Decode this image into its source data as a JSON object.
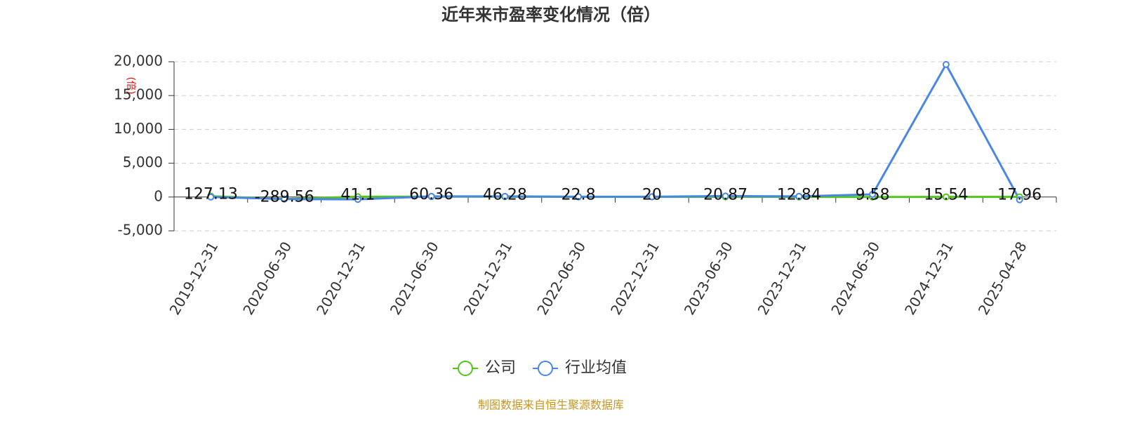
{
  "chart_data": {
    "type": "line",
    "title": "近年来市盈率变化情况（倍）",
    "y_label": "(倍)",
    "source": "制图数据来自恒生聚源数据库",
    "categories": [
      "2019-12-31",
      "2020-06-30",
      "2020-12-31",
      "2021-06-30",
      "2021-12-31",
      "2022-06-30",
      "2022-12-31",
      "2023-06-30",
      "2023-12-31",
      "2024-06-30",
      "2024-12-31",
      "2025-04-28"
    ],
    "series": [
      {
        "name": "公司",
        "color": "#52c41a",
        "values": [
          127.13,
          -289.56,
          41.1,
          60.36,
          46.28,
          22.8,
          20,
          20.87,
          12.84,
          9.58,
          15.54,
          17.96
        ],
        "show_labels": true
      },
      {
        "name": "行业均值",
        "color": "#4a86e8",
        "values": [
          0,
          -300,
          -350,
          100,
          100,
          50,
          50,
          150,
          100,
          400,
          19600,
          -400
        ],
        "show_labels": false
      }
    ],
    "ylim": [
      -5000,
      20000
    ],
    "yticks": [
      {
        "value": -5000,
        "label": "-5,000"
      },
      0,
      {
        "value": 5000,
        "label": "5,000"
      },
      {
        "value": 10000,
        "label": "10,000"
      },
      {
        "value": 15000,
        "label": "15,000"
      },
      {
        "value": 20000,
        "label": "20,000"
      }
    ],
    "grid": true
  }
}
